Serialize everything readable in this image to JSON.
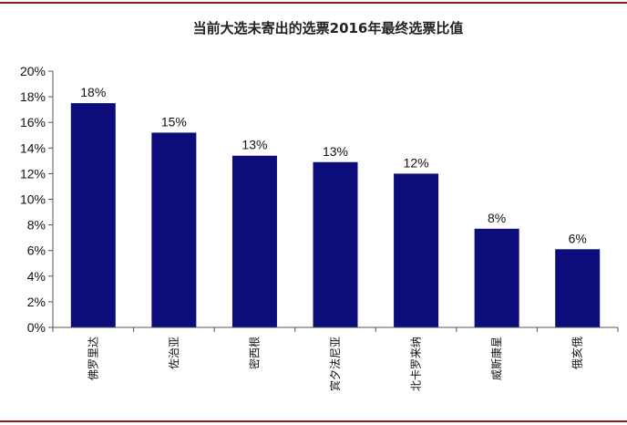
{
  "chart_data": {
    "type": "bar",
    "title": "当前大选未寄出的选票2016年最终选票比值",
    "xlabel": "",
    "ylabel": "",
    "categories": [
      "佛罗里达",
      "佐治亚",
      "密西根",
      "宾夕法尼亚",
      "北卡罗来纳",
      "威斯康星",
      "俄亥俄"
    ],
    "values": [
      17.5,
      15.2,
      13.4,
      12.9,
      12.0,
      7.7,
      6.1
    ],
    "value_labels": [
      "18%",
      "15%",
      "13%",
      "13%",
      "12%",
      "8%",
      "6%"
    ],
    "ylim": [
      0,
      20
    ],
    "yticks": [
      "0%",
      "2%",
      "4%",
      "6%",
      "8%",
      "10%",
      "12%",
      "14%",
      "16%",
      "18%",
      "20%"
    ],
    "grid": false,
    "legend": "none",
    "colors": {
      "bar": "#0c0c7a",
      "accent_line": "#8b1a1a",
      "axis": "#555555"
    }
  }
}
